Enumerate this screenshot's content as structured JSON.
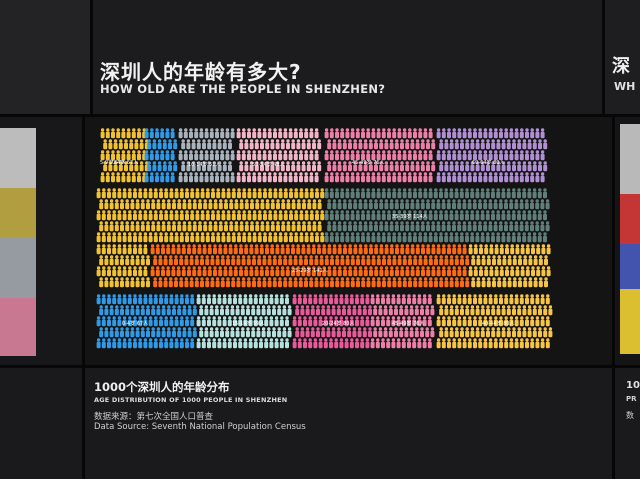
{
  "exhibit": {
    "title_cn": "深圳人的年龄有多大?",
    "title_en": "HOW OLD ARE THE PEOPLE IN SHENZHEN?",
    "subtitle_cn": "1000个深圳人的年龄分布",
    "subtitle_en": "AGE DISTRIBUTION OF 1000 PEOPLE IN SHENZHEN",
    "source_cn": "数据来源：第七次全国人口普查",
    "source_en": "Data Source: Seventh National Population Census"
  },
  "neighbor_panel": {
    "title_cn_fragment": "深",
    "title_en_fragment": "WH",
    "subtitle_fragment": "10",
    "subtitle_en_fragment": "PR",
    "source_fragment": "数"
  },
  "figure": {
    "background_color": "#141415",
    "figure_shape": "person-icon",
    "groups": [
      {
        "label": "0-4岁 67人",
        "color": "#2f9be8"
      },
      {
        "label": "5-9岁 57人",
        "color": "#f2c233"
      },
      {
        "label": "10-14岁 51人",
        "color": "#a9b3bd"
      },
      {
        "label": "15-19岁 59人",
        "color": "#b7e1de"
      },
      {
        "label": "20-24岁 80人",
        "color": "#e85a9a"
      },
      {
        "label": "25-29岁 141人",
        "color": "#ff6a13"
      },
      {
        "label": "30-34岁 67人",
        "color": "#f8c43a"
      },
      {
        "label": "35-39岁 114人",
        "color": "#5f7f78"
      },
      {
        "label": "40-44岁 80人",
        "color": "#f7c545"
      },
      {
        "label": "45-49岁 76人",
        "color": "#ee80a8"
      },
      {
        "label": "50-54岁 48人",
        "color": "#f2b6c8"
      },
      {
        "label": "60-64岁 80人",
        "color": "#b18fd3"
      }
    ]
  }
}
